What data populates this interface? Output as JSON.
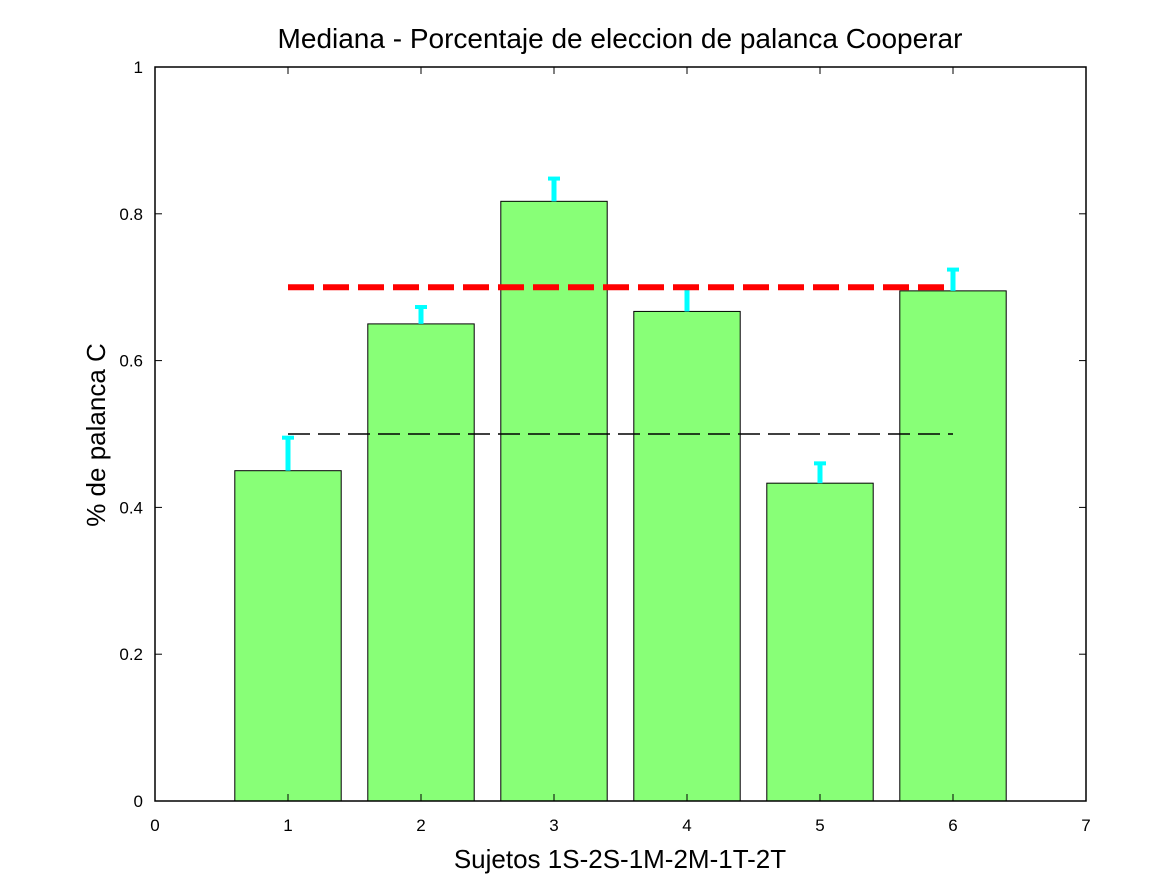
{
  "chart_data": {
    "type": "bar",
    "title": "Mediana - Porcentaje de eleccion de palanca Cooperar",
    "xlabel": "Sujetos 1S-2S-1M-2M-1T-2T",
    "ylabel": "% de palanca C",
    "xlim": [
      0,
      7
    ],
    "ylim": [
      0,
      1
    ],
    "x_ticks": [
      "0",
      "1",
      "2",
      "3",
      "4",
      "5",
      "6",
      "7"
    ],
    "y_ticks": [
      "0",
      "0.2",
      "0.4",
      "0.6",
      "0.8",
      "1"
    ],
    "grid": false,
    "categories": [
      1,
      2,
      3,
      4,
      5,
      6
    ],
    "values": [
      0.45,
      0.65,
      0.817,
      0.667,
      0.433,
      0.695
    ],
    "error_upper": [
      0.495,
      0.673,
      0.848,
      0.701,
      0.46,
      0.724
    ],
    "bar_color": "#88ff77",
    "error_color": "#00ffff",
    "reference_lines": [
      {
        "y": 0.7,
        "x_range": [
          1,
          6
        ],
        "color": "#ff0000",
        "style": "thick-dashed"
      },
      {
        "y": 0.5,
        "x_range": [
          1,
          6
        ],
        "color": "#000000",
        "style": "thin-dashed"
      }
    ]
  }
}
